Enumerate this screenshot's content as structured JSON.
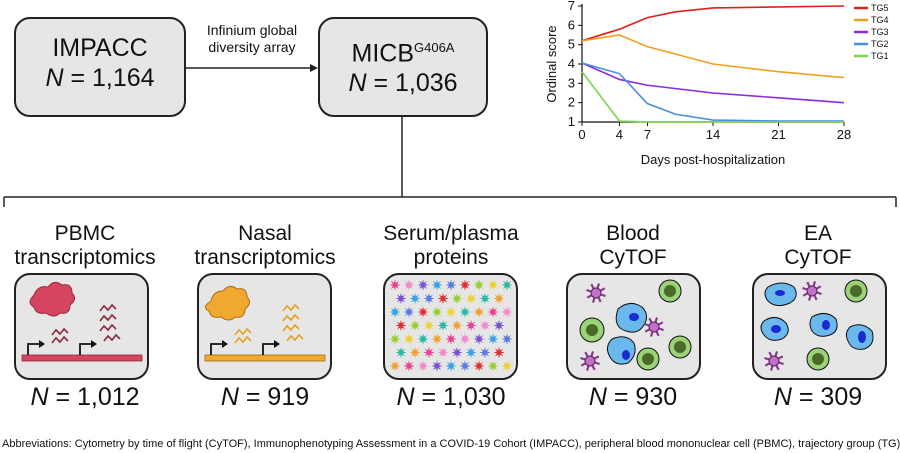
{
  "cohort": {
    "name": "IMPACC",
    "n_prefix": "N",
    "n_value": "= 1,164"
  },
  "arrow_label": {
    "line1": "Infinium global",
    "line2": "diversity array"
  },
  "micb": {
    "name": "MICB",
    "superscript": "G406A",
    "n_prefix": "N",
    "n_value": "= 1,036"
  },
  "panels": [
    {
      "title1": "PBMC",
      "title2": "transcriptomics",
      "n_prefix": "N",
      "n_value": "= 1,012",
      "icon": "pbmc-transcription-icon"
    },
    {
      "title1": "Nasal",
      "title2": "transcriptomics",
      "n_prefix": "N",
      "n_value": "= 919",
      "icon": "nasal-transcription-icon"
    },
    {
      "title1": "Serum/plasma",
      "title2": "proteins",
      "n_prefix": "N",
      "n_value": "= 1,030",
      "icon": "proteins-icon"
    },
    {
      "title1": "Blood",
      "title2": "CyTOF",
      "n_prefix": "N",
      "n_value": "= 930",
      "icon": "blood-cells-icon"
    },
    {
      "title1": "EA",
      "title2": "CyTOF",
      "n_prefix": "N",
      "n_value": "= 309",
      "icon": "ea-cells-icon"
    }
  ],
  "chart_data": {
    "type": "line",
    "xlabel": "Days post-hospitalization",
    "ylabel": "Ordinal score",
    "xlim": [
      0,
      28
    ],
    "ylim": [
      1,
      7
    ],
    "xticks": [
      0,
      4,
      7,
      14,
      21,
      28
    ],
    "yticks": [
      1,
      2,
      3,
      4,
      5,
      6,
      7
    ],
    "legend_position": "right",
    "series": [
      {
        "name": "TG5",
        "color": "#e0201b",
        "x": [
          0,
          4,
          7,
          10,
          14,
          21,
          28
        ],
        "y": [
          5.2,
          5.8,
          6.4,
          6.7,
          6.9,
          6.95,
          7.0
        ]
      },
      {
        "name": "TG4",
        "color": "#f0a020",
        "x": [
          0,
          4,
          7,
          14,
          21,
          28
        ],
        "y": [
          5.2,
          5.5,
          4.9,
          4.0,
          3.6,
          3.3
        ]
      },
      {
        "name": "TG3",
        "color": "#8a2be2",
        "x": [
          0,
          4,
          7,
          14,
          21,
          28
        ],
        "y": [
          4.05,
          3.2,
          2.9,
          2.5,
          2.25,
          2.0
        ]
      },
      {
        "name": "TG2",
        "color": "#4a8fe0",
        "x": [
          0,
          4,
          7,
          10,
          14,
          21,
          28
        ],
        "y": [
          4.05,
          3.5,
          1.95,
          1.4,
          1.1,
          1.05,
          1.05
        ]
      },
      {
        "name": "TG1",
        "color": "#7cd44a",
        "x": [
          0,
          4,
          7,
          14,
          21,
          28
        ],
        "y": [
          3.6,
          1.05,
          1.0,
          1.0,
          1.0,
          1.0
        ]
      }
    ]
  },
  "abbreviations": "Abbreviations: Cytometry by time of flight (CyTOF), Immunophenotyping Assessment in a COVID-19 Cohort (IMPACC), peripheral blood mononuclear cell (PBMC), trajectory group (TG)"
}
